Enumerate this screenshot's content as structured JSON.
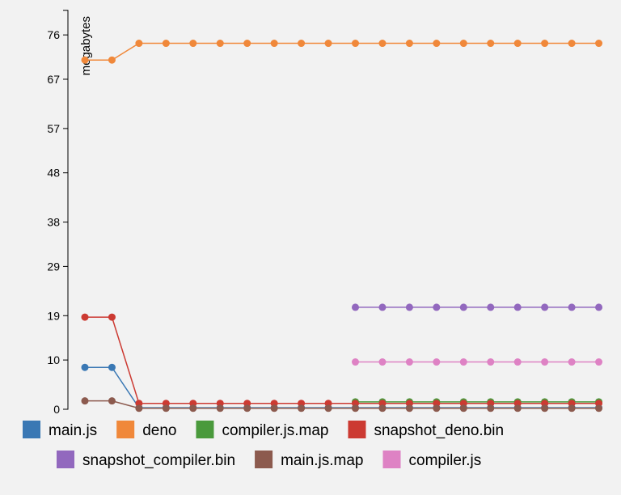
{
  "chart_data": {
    "type": "line",
    "title": "",
    "xlabel": "",
    "ylabel": "megabytes",
    "ylim": [
      0,
      81
    ],
    "yticks": [
      0,
      10,
      19,
      29,
      38,
      48,
      57,
      67,
      76
    ],
    "grid": false,
    "legend_position": "bottom",
    "x": [
      1,
      2,
      3,
      4,
      5,
      6,
      7,
      8,
      9,
      10,
      11,
      12,
      13,
      14,
      15,
      16,
      17,
      18,
      19,
      20
    ],
    "series": [
      {
        "name": "main.js",
        "color": "#3a78b4",
        "values": [
          8.5,
          8.5,
          0.3,
          0.3,
          0.3,
          0.3,
          0.3,
          0.3,
          0.3,
          0.3,
          0.3,
          0.3,
          0.3,
          0.3,
          0.3,
          0.3,
          0.3,
          0.3,
          0.3,
          0.3
        ]
      },
      {
        "name": "deno",
        "color": "#f0883a",
        "values": [
          70.9,
          70.9,
          74.3,
          74.3,
          74.3,
          74.3,
          74.3,
          74.3,
          74.3,
          74.3,
          74.3,
          74.3,
          74.3,
          74.3,
          74.3,
          74.3,
          74.3,
          74.3,
          74.3,
          74.3
        ]
      },
      {
        "name": "compiler.js.map",
        "color": "#4a9a3c",
        "values": [
          null,
          null,
          null,
          null,
          null,
          null,
          null,
          null,
          null,
          null,
          1.5,
          1.5,
          1.5,
          1.5,
          1.5,
          1.5,
          1.5,
          1.5,
          1.5,
          1.5
        ]
      },
      {
        "name": "snapshot_deno.bin",
        "color": "#cc3a32",
        "values": [
          18.7,
          18.7,
          1.2,
          1.2,
          1.2,
          1.2,
          1.2,
          1.2,
          1.2,
          1.2,
          1.2,
          1.2,
          1.2,
          1.2,
          1.2,
          1.2,
          1.2,
          1.2,
          1.2,
          1.2
        ]
      },
      {
        "name": "snapshot_compiler.bin",
        "color": "#9268be",
        "values": [
          null,
          null,
          null,
          null,
          null,
          null,
          null,
          null,
          null,
          null,
          20.7,
          20.7,
          20.7,
          20.7,
          20.7,
          20.7,
          20.7,
          20.7,
          20.7,
          20.7
        ]
      },
      {
        "name": "main.js.map",
        "color": "#8c5a4e",
        "values": [
          1.7,
          1.7,
          0.2,
          0.2,
          0.2,
          0.2,
          0.2,
          0.2,
          0.2,
          0.2,
          0.2,
          0.2,
          0.2,
          0.2,
          0.2,
          0.2,
          0.2,
          0.2,
          0.2,
          0.2
        ]
      },
      {
        "name": "compiler.js",
        "color": "#de82c4",
        "values": [
          null,
          null,
          null,
          null,
          null,
          null,
          null,
          null,
          null,
          null,
          9.6,
          9.6,
          9.6,
          9.6,
          9.6,
          9.6,
          9.6,
          9.6,
          9.6,
          9.6
        ]
      }
    ]
  }
}
